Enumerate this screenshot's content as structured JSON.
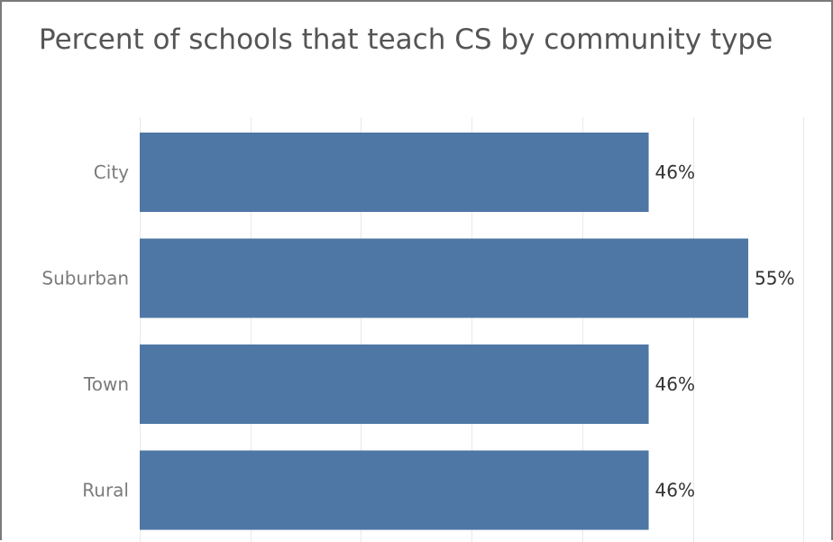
{
  "chart_data": {
    "type": "bar",
    "orientation": "horizontal",
    "title": "Percent of schools that teach CS by community type",
    "categories": [
      "City",
      "Suburban",
      "Town",
      "Rural"
    ],
    "values": [
      46,
      55,
      46,
      46
    ],
    "value_labels": [
      "46%",
      "55%",
      "46%",
      "46%"
    ],
    "xlim": [
      0,
      60
    ],
    "grid": "vertical",
    "bar_color": "#4e77a5",
    "gridline_color": "#e9e9e9"
  }
}
